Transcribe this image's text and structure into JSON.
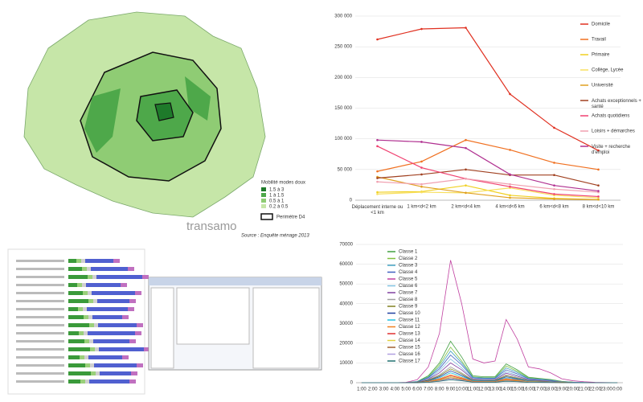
{
  "map": {
    "legend_title": "Mobilité modes doux",
    "legend_items": [
      "1.5 à 3",
      "1 à 1.5",
      "0.5 à 1",
      "0.2 à 0.5"
    ],
    "legend_colors": [
      "#1e7a2a",
      "#4ea84a",
      "#8fcc74",
      "#c6e6a8"
    ],
    "perimeter": "Perimètre D4",
    "brand": "transamo",
    "source": "Source : Enquête ménage 2013"
  },
  "chart_data": [
    {
      "type": "line",
      "categories": [
        "Déplacement interne ou <1 km",
        "1 km<d<2 km",
        "2 km<d<4 km",
        "4 km<d<6 km",
        "6 km<d<8 km",
        "8 km<d<10 km"
      ],
      "ylim": [
        0,
        300000
      ],
      "yticks": [
        0,
        {
          "value": 50000,
          "label": "50 000"
        },
        {
          "value": 100000,
          "label": "100 000"
        },
        {
          "value": 150000,
          "label": "150 000"
        },
        {
          "value": 200000,
          "label": "200 000"
        },
        {
          "value": 250000,
          "label": "250 000"
        },
        {
          "value": 300000,
          "label": "300 000"
        }
      ],
      "series": [
        {
          "name": "Domicile",
          "color": "#e03020",
          "values": [
            262000,
            279000,
            281000,
            173000,
            118000,
            81000
          ]
        },
        {
          "name": "Travail",
          "color": "#f07020",
          "values": [
            47000,
            63000,
            98000,
            82000,
            61000,
            50000
          ]
        },
        {
          "name": "Primaire",
          "color": "#f0d020",
          "values": [
            13000,
            14000,
            24000,
            8000,
            3000,
            1000
          ]
        },
        {
          "name": "Collège, Lycée",
          "color": "#f8e060",
          "values": [
            10000,
            13000,
            12000,
            20000,
            8000,
            4000
          ]
        },
        {
          "name": "Université",
          "color": "#e0a020",
          "values": [
            38000,
            22000,
            12000,
            4000,
            2000,
            1000
          ]
        },
        {
          "name": "Achats exceptionnels + santé",
          "color": "#a04020",
          "values": [
            36000,
            42000,
            50000,
            41000,
            41000,
            24000
          ]
        },
        {
          "name": "Achats quotidiens",
          "color": "#f04070",
          "values": [
            88000,
            53000,
            35000,
            22000,
            10000,
            6000
          ]
        },
        {
          "name": "Loisirs + démarches",
          "color": "#f0a0b0",
          "values": [
            30000,
            26000,
            35000,
            26000,
            18000,
            13000
          ]
        },
        {
          "name": "Visite + recherche d'emploi",
          "color": "#b03090",
          "values": [
            98000,
            95000,
            85000,
            42000,
            24000,
            15000
          ]
        }
      ]
    },
    {
      "type": "line",
      "categories": [
        "1:00",
        "2:00",
        "3:00",
        "4:00",
        "5:00",
        "6:00",
        "7:00",
        "8:00",
        "9:00",
        "10:00",
        "11:00",
        "12:00",
        "13:00",
        "14:00",
        "15:00",
        "16:00",
        "17:00",
        "18:00",
        "19:00",
        "20:00",
        "21:00",
        "22:00",
        "23:00",
        "0:00"
      ],
      "ylim": [
        0,
        70000
      ],
      "yticks": [
        0,
        10000,
        20000,
        30000,
        40000,
        50000,
        60000,
        70000
      ],
      "series": [
        {
          "name": "Classe 1",
          "color": "#40a040",
          "values": [
            0,
            0,
            0,
            0,
            100,
            600,
            3500,
            10000,
            21000,
            13000,
            3500,
            3000,
            3000,
            9500,
            6500,
            2800,
            2200,
            1600,
            700,
            300,
            150,
            50,
            0,
            0
          ]
        },
        {
          "name": "Classe 2",
          "color": "#80c040",
          "values": [
            0,
            0,
            0,
            0,
            100,
            500,
            3000,
            9000,
            18000,
            11000,
            3000,
            2600,
            2600,
            8500,
            5800,
            2500,
            2000,
            1400,
            600,
            300,
            100,
            50,
            0,
            0
          ]
        },
        {
          "name": "Classe 3",
          "color": "#40a0c0",
          "values": [
            0,
            0,
            0,
            0,
            100,
            500,
            2800,
            8000,
            16000,
            10000,
            2800,
            2400,
            2400,
            7500,
            5200,
            2200,
            1800,
            1300,
            500,
            250,
            100,
            0,
            0,
            0
          ]
        },
        {
          "name": "Classe 4",
          "color": "#4060c0",
          "values": [
            0,
            0,
            0,
            0,
            80,
            400,
            2500,
            7000,
            14000,
            9000,
            2500,
            2100,
            2200,
            6500,
            4500,
            2000,
            1600,
            1100,
            450,
            200,
            100,
            0,
            0,
            0
          ]
        },
        {
          "name": "Classe 5",
          "color": "#c040a0",
          "values": [
            0,
            0,
            0,
            0,
            200,
            1500,
            8000,
            25000,
            62000,
            40000,
            12000,
            10000,
            11000,
            32000,
            22000,
            8000,
            7000,
            5000,
            2000,
            1000,
            500,
            200,
            100,
            0
          ]
        },
        {
          "name": "Classe 6",
          "color": "#80c0e0",
          "values": [
            0,
            0,
            0,
            0,
            60,
            300,
            2000,
            6000,
            12000,
            7500,
            2000,
            1800,
            1800,
            5500,
            3800,
            1700,
            1300,
            900,
            400,
            200,
            80,
            0,
            0,
            0
          ]
        },
        {
          "name": "Classe 7",
          "color": "#8040a0",
          "values": [
            0,
            0,
            0,
            0,
            50,
            300,
            1800,
            5000,
            10000,
            6500,
            1800,
            1500,
            1600,
            4800,
            3300,
            1500,
            1100,
            800,
            350,
            150,
            50,
            0,
            0,
            0
          ]
        },
        {
          "name": "Classe 8",
          "color": "#a0a0a0",
          "values": [
            0,
            0,
            0,
            0,
            40,
            200,
            1500,
            4000,
            8000,
            5000,
            1500,
            1200,
            1300,
            4000,
            2700,
            1200,
            900,
            600,
            300,
            100,
            50,
            0,
            0,
            0
          ]
        },
        {
          "name": "Classe 9",
          "color": "#808020",
          "values": [
            0,
            0,
            0,
            0,
            30,
            200,
            1200,
            3500,
            7000,
            4500,
            1200,
            1000,
            1100,
            3500,
            2300,
            1000,
            800,
            500,
            250,
            100,
            0,
            0,
            0,
            0
          ]
        },
        {
          "name": "Classe 10",
          "color": "#2040a0",
          "values": [
            0,
            0,
            0,
            0,
            30,
            150,
            1000,
            3000,
            6000,
            3800,
            1000,
            900,
            900,
            3000,
            2000,
            900,
            700,
            450,
            200,
            100,
            0,
            0,
            0,
            0
          ]
        },
        {
          "name": "Classe 11",
          "color": "#20c0e0",
          "values": [
            0,
            0,
            0,
            0,
            20,
            100,
            800,
            2500,
            5000,
            3200,
            900,
            800,
            800,
            2500,
            1700,
            800,
            600,
            400,
            150,
            80,
            0,
            0,
            0,
            0
          ]
        },
        {
          "name": "Classe 12",
          "color": "#f08020",
          "values": [
            0,
            0,
            0,
            0,
            20,
            100,
            700,
            2000,
            4000,
            2600,
            700,
            600,
            650,
            2000,
            1400,
            600,
            500,
            300,
            120,
            50,
            0,
            0,
            0,
            0
          ]
        },
        {
          "name": "Classe 13",
          "color": "#e03030",
          "values": [
            0,
            0,
            0,
            0,
            10,
            80,
            600,
            1700,
            3500,
            2200,
            600,
            500,
            550,
            1700,
            1200,
            500,
            400,
            250,
            100,
            50,
            0,
            0,
            0,
            0
          ]
        },
        {
          "name": "Classe 14",
          "color": "#e0d040",
          "values": [
            0,
            0,
            0,
            0,
            10,
            60,
            500,
            1400,
            3000,
            1900,
            500,
            450,
            450,
            1400,
            1000,
            450,
            350,
            200,
            80,
            40,
            0,
            0,
            0,
            0
          ]
        },
        {
          "name": "Classe 15",
          "color": "#a06030",
          "values": [
            0,
            0,
            0,
            0,
            10,
            50,
            400,
            1100,
            2500,
            1600,
            400,
            350,
            380,
            1100,
            800,
            350,
            300,
            150,
            60,
            30,
            0,
            0,
            0,
            0
          ]
        },
        {
          "name": "Classe 16",
          "color": "#b0a0e0",
          "values": [
            0,
            0,
            0,
            0,
            0,
            40,
            300,
            900,
            2000,
            1300,
            300,
            280,
            300,
            900,
            600,
            280,
            200,
            120,
            50,
            20,
            0,
            0,
            0,
            0
          ]
        },
        {
          "name": "Classe 17",
          "color": "#207070",
          "values": [
            0,
            0,
            0,
            0,
            0,
            30,
            200,
            700,
            1500,
            1000,
            250,
            200,
            220,
            700,
            500,
            200,
            150,
            100,
            40,
            0,
            0,
            0,
            0,
            0
          ]
        }
      ]
    }
  ]
}
